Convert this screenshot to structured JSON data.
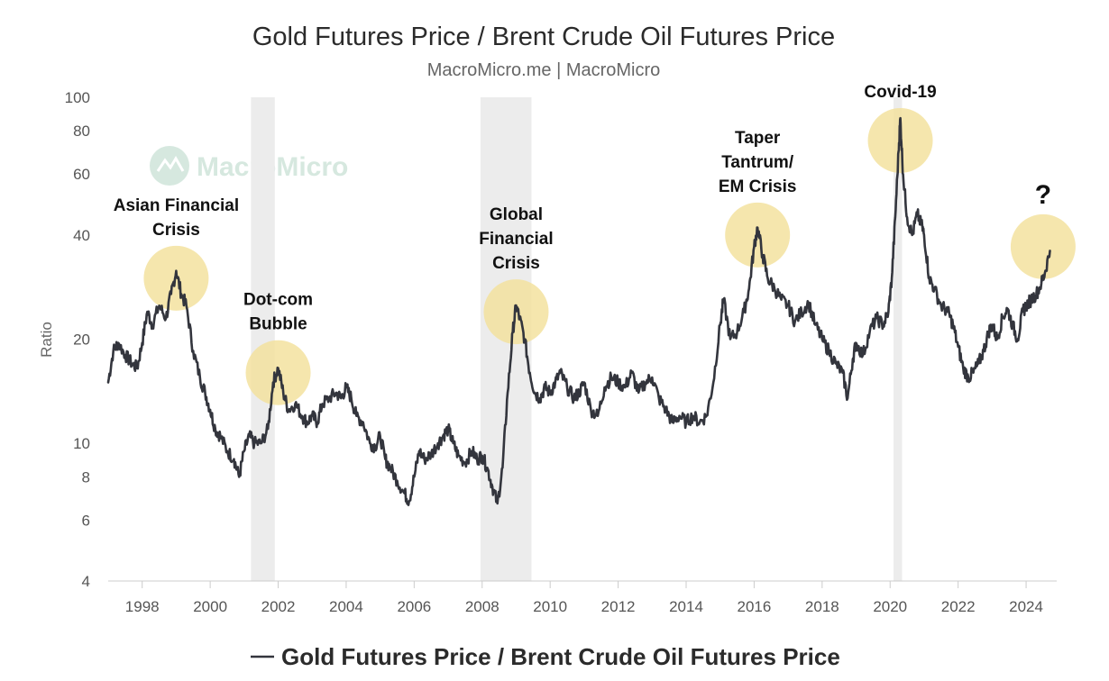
{
  "colors": {
    "line": "#33353d",
    "highlight": "#f3e29f",
    "recession": "#ececec",
    "axis": "#cccccc",
    "watermark": "#d6e8df"
  },
  "watermark": {
    "text": "MacroMicro",
    "icon": "macromicro-logo-icon"
  },
  "chart_data": {
    "type": "line",
    "title": "Gold Futures Price / Brent Crude Oil Futures Price",
    "subtitle": "MacroMicro.me | MacroMicro",
    "ylabel": "Ratio",
    "xlabel": "",
    "y_scale": "log",
    "ylim": [
      4,
      100
    ],
    "xlim": [
      1997.0,
      2024.9
    ],
    "x_ticks": [
      "1998",
      "2000",
      "2002",
      "2004",
      "2006",
      "2008",
      "2010",
      "2012",
      "2014",
      "2016",
      "2018",
      "2020",
      "2022",
      "2024"
    ],
    "y_ticks": [
      "4",
      "6",
      "8",
      "10",
      "20",
      "40",
      "60",
      "80",
      "100"
    ],
    "grid": false,
    "legend_position": "bottom-center",
    "legend": [
      "Gold Futures Price / Brent Crude Oil Futures Price"
    ],
    "recession_bands": [
      [
        2001.2,
        2001.9
      ],
      [
        2007.95,
        2009.45
      ],
      [
        2020.1,
        2020.35
      ]
    ],
    "annotations": [
      {
        "lines": [
          "Asian Financial",
          "Crisis"
        ],
        "x": 1999.0,
        "y": 30
      },
      {
        "lines": [
          "Dot-com",
          "Bubble"
        ],
        "x": 2002.0,
        "y": 16
      },
      {
        "lines": [
          "Global",
          "Financial",
          "Crisis"
        ],
        "x": 2009.0,
        "y": 24
      },
      {
        "lines": [
          "Taper",
          "Tantrum/",
          "EM Crisis"
        ],
        "x": 2016.1,
        "y": 40
      },
      {
        "lines": [
          "Covid-19"
        ],
        "x": 2020.3,
        "y": 75
      },
      {
        "lines": [
          "?"
        ],
        "x": 2024.5,
        "y": 37
      }
    ],
    "series": [
      {
        "name": "Gold Futures Price / Brent Crude Oil Futures Price",
        "points": [
          [
            1997.0,
            15.0
          ],
          [
            1997.15,
            18.5
          ],
          [
            1997.3,
            19.5
          ],
          [
            1997.5,
            18.0
          ],
          [
            1997.7,
            17.0
          ],
          [
            1997.85,
            16.5
          ],
          [
            1998.0,
            19.5
          ],
          [
            1998.15,
            24.0
          ],
          [
            1998.3,
            22.0
          ],
          [
            1998.5,
            25.0
          ],
          [
            1998.7,
            23.0
          ],
          [
            1998.85,
            27.0
          ],
          [
            1999.0,
            31.5
          ],
          [
            1999.15,
            27.0
          ],
          [
            1999.3,
            25.0
          ],
          [
            1999.5,
            18.5
          ],
          [
            1999.7,
            15.5
          ],
          [
            1999.85,
            14.0
          ],
          [
            2000.0,
            12.5
          ],
          [
            2000.15,
            11.0
          ],
          [
            2000.3,
            10.5
          ],
          [
            2000.5,
            9.5
          ],
          [
            2000.7,
            9.0
          ],
          [
            2000.85,
            8.0
          ],
          [
            2001.0,
            9.5
          ],
          [
            2001.15,
            10.5
          ],
          [
            2001.3,
            10.0
          ],
          [
            2001.5,
            10.0
          ],
          [
            2001.7,
            11.0
          ],
          [
            2001.85,
            15.0
          ],
          [
            2002.0,
            16.5
          ],
          [
            2002.15,
            14.0
          ],
          [
            2002.3,
            12.5
          ],
          [
            2002.5,
            13.0
          ],
          [
            2002.7,
            12.0
          ],
          [
            2002.85,
            11.5
          ],
          [
            2003.0,
            12.0
          ],
          [
            2003.15,
            11.5
          ],
          [
            2003.3,
            13.0
          ],
          [
            2003.5,
            13.5
          ],
          [
            2003.7,
            14.0
          ],
          [
            2003.85,
            13.5
          ],
          [
            2004.0,
            14.5
          ],
          [
            2004.15,
            13.5
          ],
          [
            2004.3,
            12.0
          ],
          [
            2004.5,
            11.5
          ],
          [
            2004.7,
            10.0
          ],
          [
            2004.85,
            9.8
          ],
          [
            2005.0,
            10.5
          ],
          [
            2005.15,
            9.0
          ],
          [
            2005.3,
            8.5
          ],
          [
            2005.5,
            7.8
          ],
          [
            2005.7,
            7.2
          ],
          [
            2005.85,
            6.8
          ],
          [
            2006.0,
            8.0
          ],
          [
            2006.15,
            9.5
          ],
          [
            2006.3,
            9.0
          ],
          [
            2006.5,
            9.3
          ],
          [
            2006.7,
            10.0
          ],
          [
            2006.85,
            10.5
          ],
          [
            2007.0,
            11.0
          ],
          [
            2007.15,
            10.0
          ],
          [
            2007.3,
            9.2
          ],
          [
            2007.5,
            8.8
          ],
          [
            2007.7,
            9.5
          ],
          [
            2007.85,
            9.0
          ],
          [
            2008.0,
            9.2
          ],
          [
            2008.15,
            8.5
          ],
          [
            2008.3,
            7.5
          ],
          [
            2008.45,
            6.7
          ],
          [
            2008.6,
            8.5
          ],
          [
            2008.75,
            14.0
          ],
          [
            2008.9,
            21.0
          ],
          [
            2009.0,
            25.0
          ],
          [
            2009.1,
            23.0
          ],
          [
            2009.25,
            20.0
          ],
          [
            2009.4,
            16.0
          ],
          [
            2009.55,
            14.0
          ],
          [
            2009.7,
            13.5
          ],
          [
            2009.85,
            14.5
          ],
          [
            2010.0,
            14.0
          ],
          [
            2010.15,
            15.0
          ],
          [
            2010.3,
            16.0
          ],
          [
            2010.5,
            14.5
          ],
          [
            2010.7,
            13.5
          ],
          [
            2010.85,
            14.0
          ],
          [
            2011.0,
            15.0
          ],
          [
            2011.2,
            12.5
          ],
          [
            2011.4,
            12.0
          ],
          [
            2011.6,
            14.5
          ],
          [
            2011.8,
            15.5
          ],
          [
            2012.0,
            15.0
          ],
          [
            2012.2,
            14.5
          ],
          [
            2012.4,
            16.0
          ],
          [
            2012.6,
            14.0
          ],
          [
            2012.8,
            15.0
          ],
          [
            2013.0,
            15.5
          ],
          [
            2013.2,
            13.5
          ],
          [
            2013.4,
            12.5
          ],
          [
            2013.6,
            11.5
          ],
          [
            2013.8,
            12.0
          ],
          [
            2014.0,
            11.5
          ],
          [
            2014.2,
            12.0
          ],
          [
            2014.4,
            11.5
          ],
          [
            2014.6,
            12.0
          ],
          [
            2014.8,
            15.0
          ],
          [
            2015.0,
            22.0
          ],
          [
            2015.1,
            26.0
          ],
          [
            2015.3,
            20.0
          ],
          [
            2015.5,
            21.0
          ],
          [
            2015.7,
            24.0
          ],
          [
            2015.85,
            28.0
          ],
          [
            2016.0,
            37.0
          ],
          [
            2016.1,
            42.0
          ],
          [
            2016.25,
            35.0
          ],
          [
            2016.4,
            30.0
          ],
          [
            2016.6,
            28.0
          ],
          [
            2016.8,
            26.0
          ],
          [
            2017.0,
            25.0
          ],
          [
            2017.2,
            22.5
          ],
          [
            2017.4,
            24.0
          ],
          [
            2017.6,
            25.5
          ],
          [
            2017.8,
            22.0
          ],
          [
            2018.0,
            20.0
          ],
          [
            2018.2,
            18.5
          ],
          [
            2018.4,
            17.0
          ],
          [
            2018.6,
            16.0
          ],
          [
            2018.75,
            13.5
          ],
          [
            2018.9,
            17.5
          ],
          [
            2019.0,
            19.5
          ],
          [
            2019.2,
            18.0
          ],
          [
            2019.4,
            21.0
          ],
          [
            2019.6,
            23.0
          ],
          [
            2019.8,
            22.0
          ],
          [
            2019.95,
            24.0
          ],
          [
            2020.05,
            30.0
          ],
          [
            2020.15,
            45.0
          ],
          [
            2020.25,
            70.0
          ],
          [
            2020.3,
            87.0
          ],
          [
            2020.38,
            60.0
          ],
          [
            2020.5,
            45.0
          ],
          [
            2020.65,
            40.0
          ],
          [
            2020.8,
            46.0
          ],
          [
            2020.95,
            42.0
          ],
          [
            2021.0,
            40.0
          ],
          [
            2021.15,
            30.0
          ],
          [
            2021.3,
            28.0
          ],
          [
            2021.5,
            25.0
          ],
          [
            2021.7,
            24.0
          ],
          [
            2021.85,
            22.0
          ],
          [
            2022.0,
            19.0
          ],
          [
            2022.15,
            16.5
          ],
          [
            2022.3,
            15.5
          ],
          [
            2022.45,
            16.0
          ],
          [
            2022.6,
            17.0
          ],
          [
            2022.75,
            18.5
          ],
          [
            2022.9,
            21.0
          ],
          [
            2023.0,
            22.0
          ],
          [
            2023.15,
            20.0
          ],
          [
            2023.3,
            23.0
          ],
          [
            2023.45,
            24.5
          ],
          [
            2023.6,
            22.0
          ],
          [
            2023.75,
            20.0
          ],
          [
            2023.9,
            24.0
          ],
          [
            2024.0,
            25.0
          ],
          [
            2024.15,
            26.0
          ],
          [
            2024.3,
            27.0
          ],
          [
            2024.45,
            29.0
          ],
          [
            2024.55,
            31.0
          ],
          [
            2024.7,
            36.0
          ]
        ]
      }
    ]
  }
}
